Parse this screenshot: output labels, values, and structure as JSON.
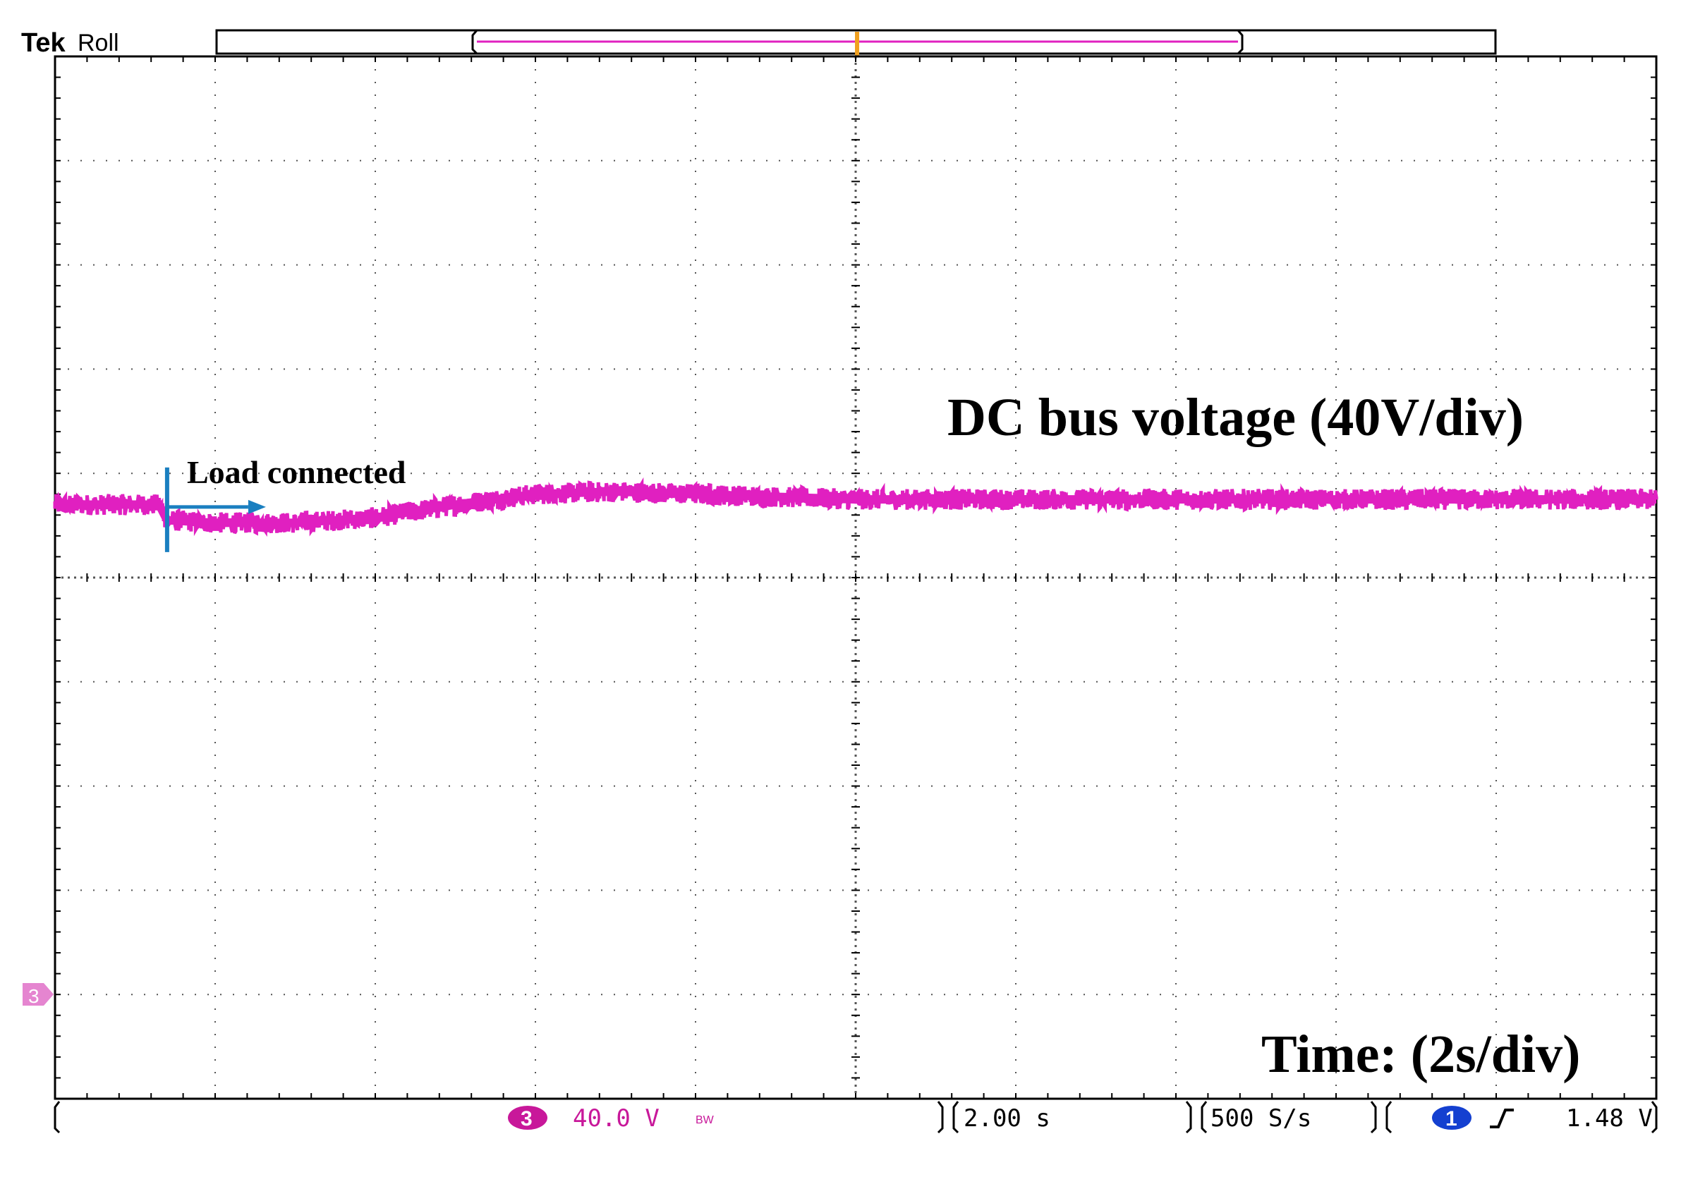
{
  "header": {
    "brand": "Tek",
    "mode": "Roll"
  },
  "annotations": {
    "signal_label": "DC bus voltage (40V/div)",
    "time_label": "Time: (2s/div)",
    "event_label": "Load connected"
  },
  "status_bar": {
    "channel_number": "3",
    "channel_scale": "40.0 V",
    "bandwidth_flag": "BW",
    "time_scale": "2.00 s",
    "sample_rate": "500 S/s",
    "trigger_channel": "1",
    "trigger_level": "1.48 V"
  },
  "channel_marker": "3",
  "colors": {
    "trace": "#e020c0",
    "grid": "#555555",
    "trigger_marker": "#f0a020",
    "event_marker": "#1a7fc0",
    "trigger_badge": "#1440d0",
    "channel_badge": "#c8189a"
  },
  "chart_data": {
    "type": "line",
    "title": "DC bus voltage (40V/div)",
    "xlabel": "Time: (2s/div)",
    "ylabel": "",
    "x_unit": "s",
    "y_unit": "V",
    "xlim": [
      0,
      20
    ],
    "ylim": [
      -40,
      360
    ],
    "grid": true,
    "noise_pp": 8,
    "series": [
      {
        "x": [
          0,
          1.3,
          1.4,
          2,
          3,
          4,
          5,
          6,
          7,
          8,
          9,
          10,
          12,
          14,
          16,
          18,
          20
        ],
        "y": [
          188,
          188,
          182,
          181,
          181,
          183,
          188,
          192,
          193,
          192,
          191,
          190,
          190,
          190,
          190,
          190,
          190
        ]
      }
    ],
    "events": [
      {
        "x": 1.4,
        "label": "Load connected"
      }
    ]
  }
}
